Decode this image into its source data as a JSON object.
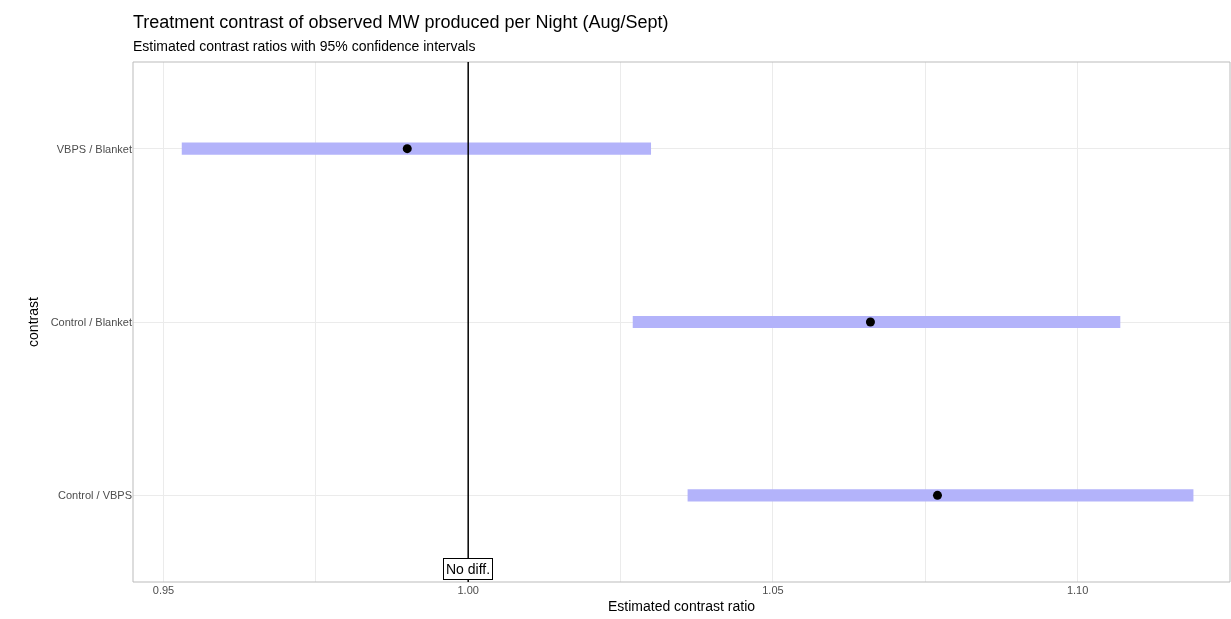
{
  "chart_data": {
    "type": "bar",
    "orientation": "horizontal",
    "title": "Treatment contrast of observed MW produced per Night (Aug/Sept)",
    "subtitle": "Estimated contrast ratios with 95% confidence intervals",
    "xlabel": "Estimated contrast ratio",
    "ylabel": "contrast",
    "categories": [
      "VBPS / Blanket",
      "Control / Blanket",
      "Control / VBPS"
    ],
    "series": [
      {
        "color": "#b3b3fa",
        "base": [
          0.953,
          1.027,
          1.036
        ],
        "values": [
          0.077,
          0.08,
          0.083
        ]
      },
      {
        "type": "scatter",
        "color": "#000000",
        "values": [
          0.99,
          1.066,
          1.077
        ]
      }
    ],
    "xlim": [
      0.945,
      1.125
    ],
    "xticks": [
      {
        "value": 0.95,
        "label": "0.95"
      },
      {
        "value": 0.975,
        "label": null
      },
      {
        "value": 1.0,
        "label": "1.00"
      },
      {
        "value": 1.025,
        "label": null
      },
      {
        "value": 1.05,
        "label": "1.05"
      },
      {
        "value": 1.075,
        "label": null
      },
      {
        "value": 1.1,
        "label": "1.10"
      }
    ],
    "ref_lines": [
      {
        "axis": "x",
        "value": 1.0,
        "label": "No diff.",
        "color": "#000000"
      }
    ],
    "grid": true,
    "marker": "circle"
  }
}
